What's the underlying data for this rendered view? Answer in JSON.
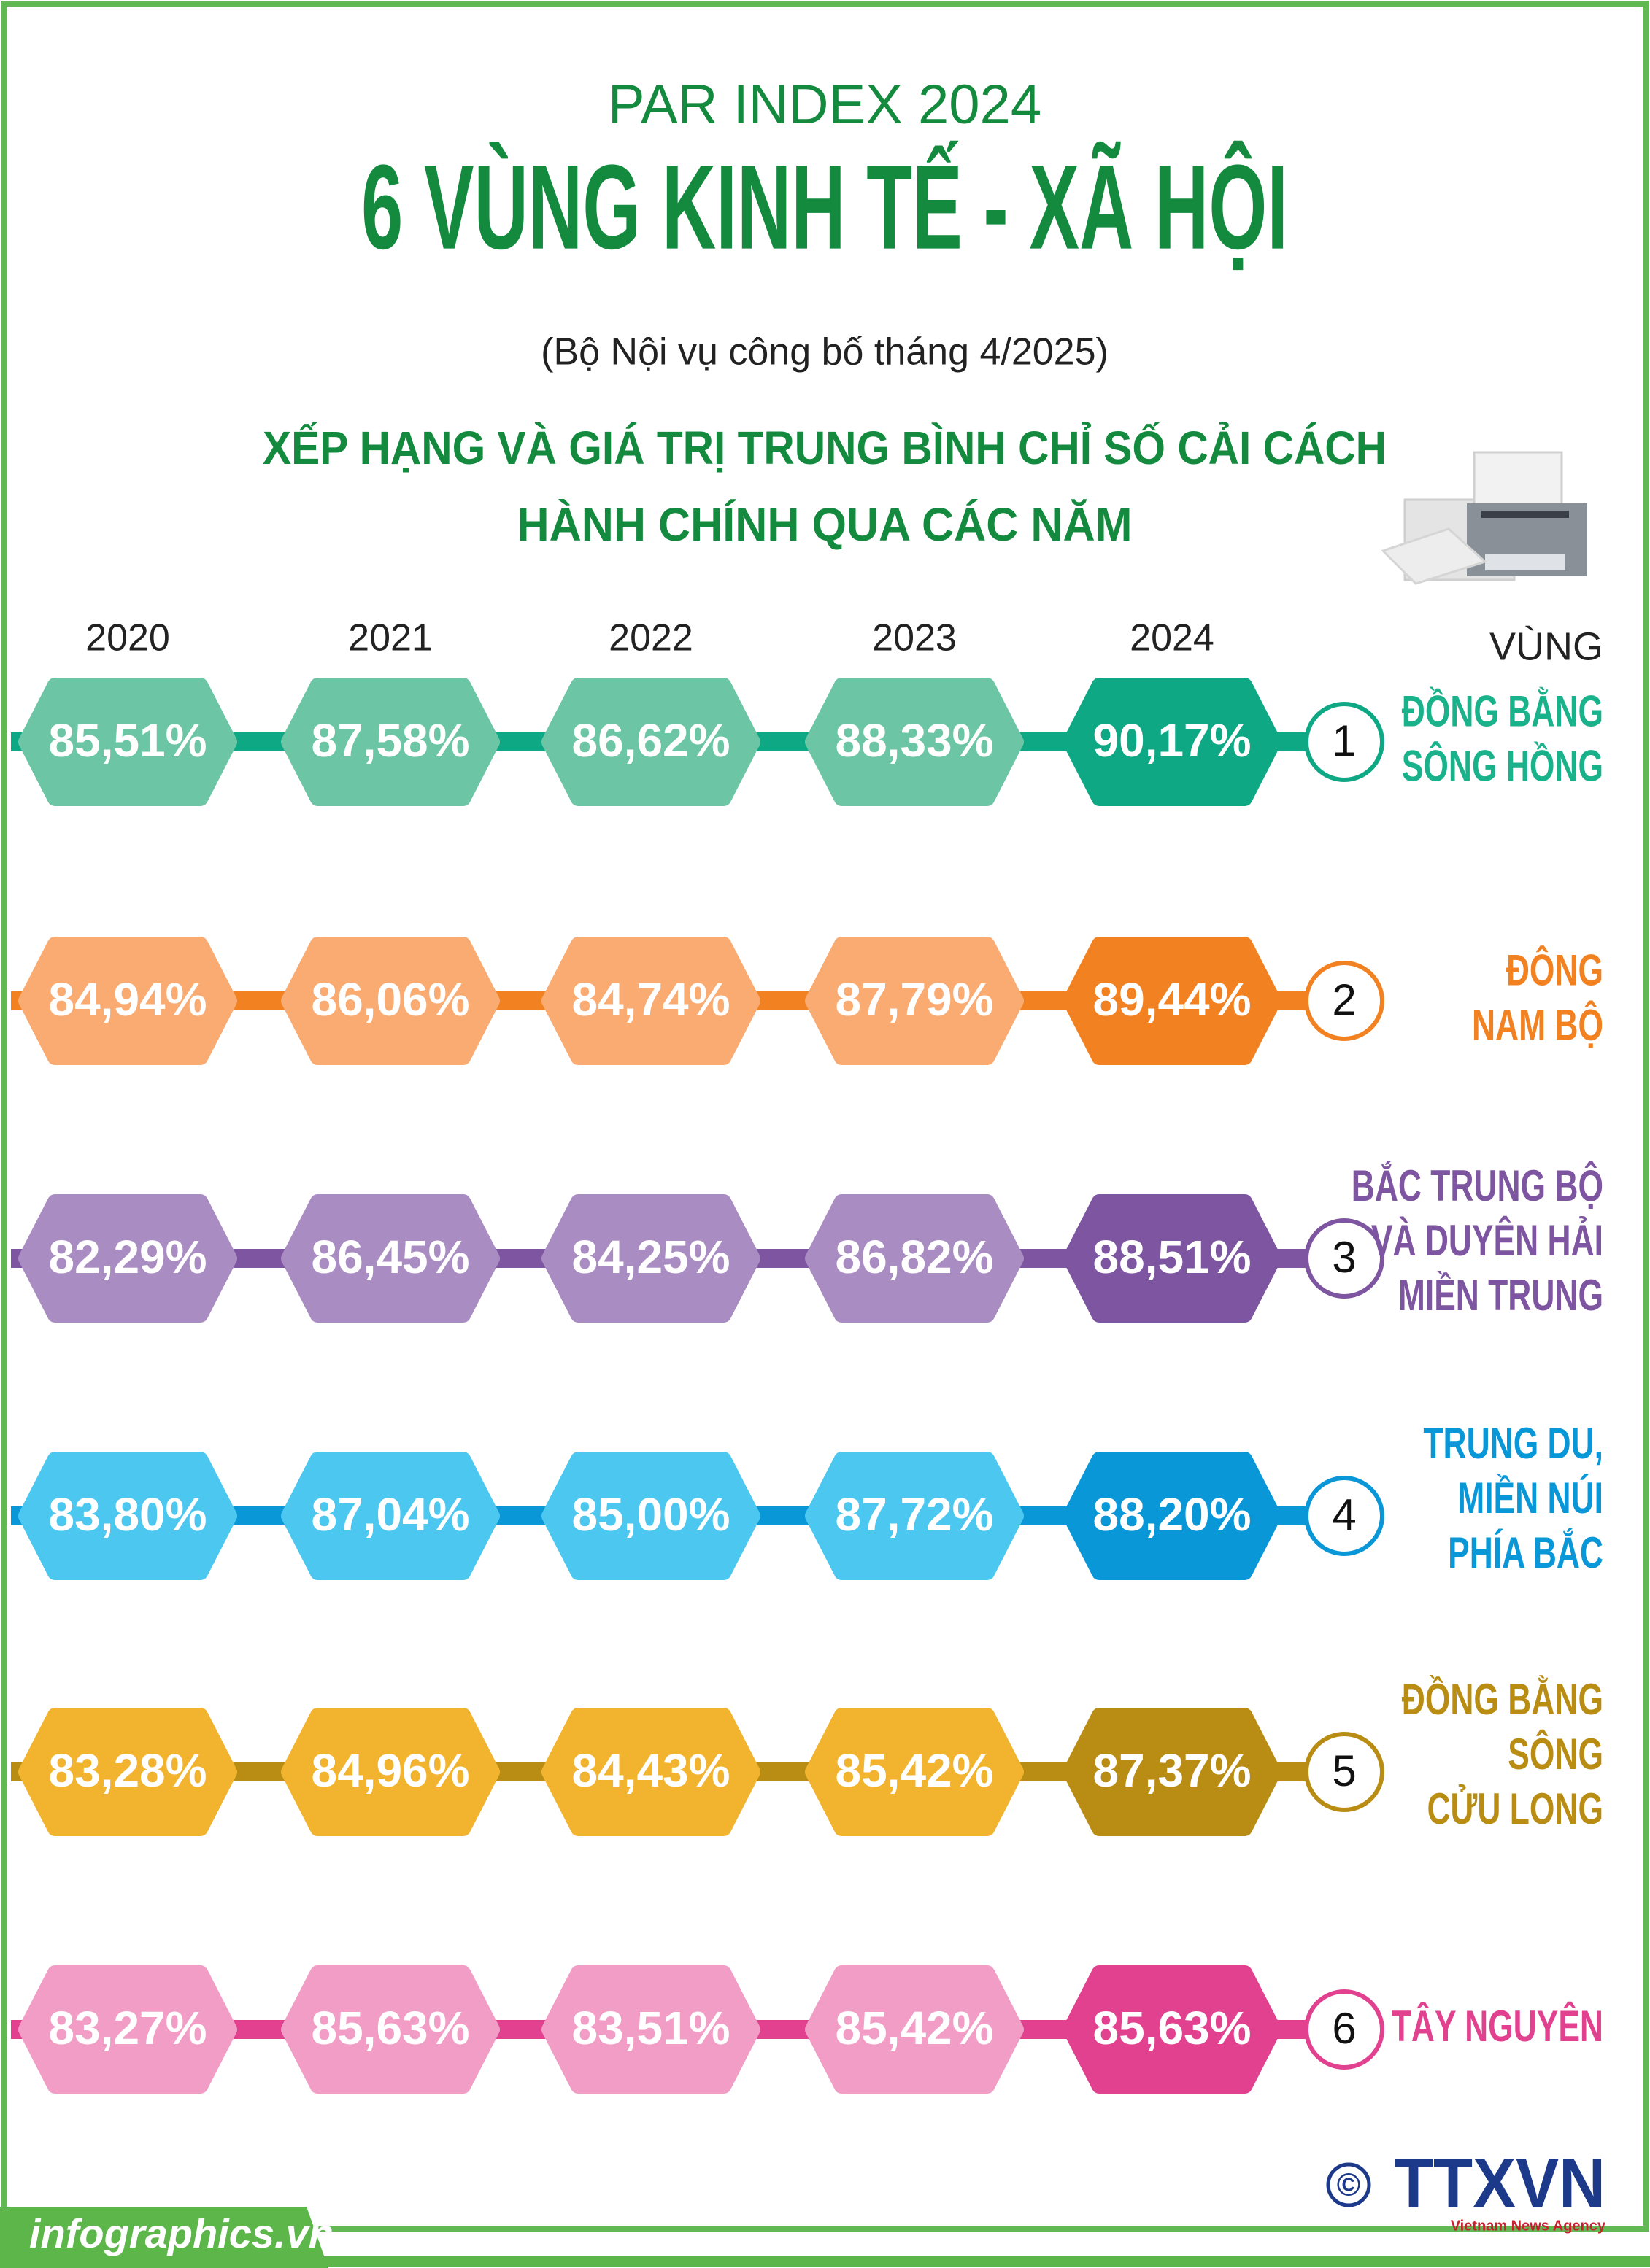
{
  "header": {
    "kicker": "PAR INDEX 2024",
    "title": "6 VÙNG KINH TẾ - XÃ HỘI",
    "note": "(Bộ Nội vụ công bố tháng 4/2025)",
    "heading": [
      "XẾP HẠNG VÀ GIÁ TRỊ TRUNG BÌNH CHỈ SỐ CẢI CÁCH",
      "HÀNH CHÍNH QUA CÁC NĂM"
    ]
  },
  "columns": {
    "years": [
      "2020",
      "2021",
      "2022",
      "2023",
      "2024"
    ],
    "region_label": "VÙNG"
  },
  "rows": [
    {
      "rank": 1,
      "region": [
        "ĐỒNG BẰNG",
        "SÔNG HỒNG"
      ],
      "values": [
        "85,51%",
        "87,58%",
        "86,62%",
        "88,33%",
        "90,17%"
      ]
    },
    {
      "rank": 2,
      "region": [
        "ĐÔNG",
        "NAM BỘ"
      ],
      "values": [
        "84,94%",
        "86,06%",
        "84,74%",
        "87,79%",
        "89,44%"
      ]
    },
    {
      "rank": 3,
      "region": [
        "BẮC TRUNG BỘ",
        "VÀ DUYÊN HẢI",
        "MIỀN TRUNG"
      ],
      "values": [
        "82,29%",
        "86,45%",
        "84,25%",
        "86,82%",
        "88,51%"
      ]
    },
    {
      "rank": 4,
      "region": [
        "TRUNG DU,",
        "MIỀN NÚI",
        "PHÍA BẮC"
      ],
      "values": [
        "83,80%",
        "87,04%",
        "85,00%",
        "87,72%",
        "88,20%"
      ]
    },
    {
      "rank": 5,
      "region": [
        "ĐỒNG BẰNG",
        "SÔNG",
        "CỬU LONG"
      ],
      "values": [
        "83,28%",
        "84,96%",
        "84,43%",
        "85,42%",
        "87,37%"
      ]
    },
    {
      "rank": 6,
      "region": [
        "TÂY NGUYÊN"
      ],
      "values": [
        "83,27%",
        "85,63%",
        "83,51%",
        "85,42%",
        "85,63%"
      ]
    }
  ],
  "footer": {
    "site": "infographics.vn",
    "copyright": "©",
    "agency": "TTXVN",
    "agency_full": "Vietnam News Agency"
  }
}
